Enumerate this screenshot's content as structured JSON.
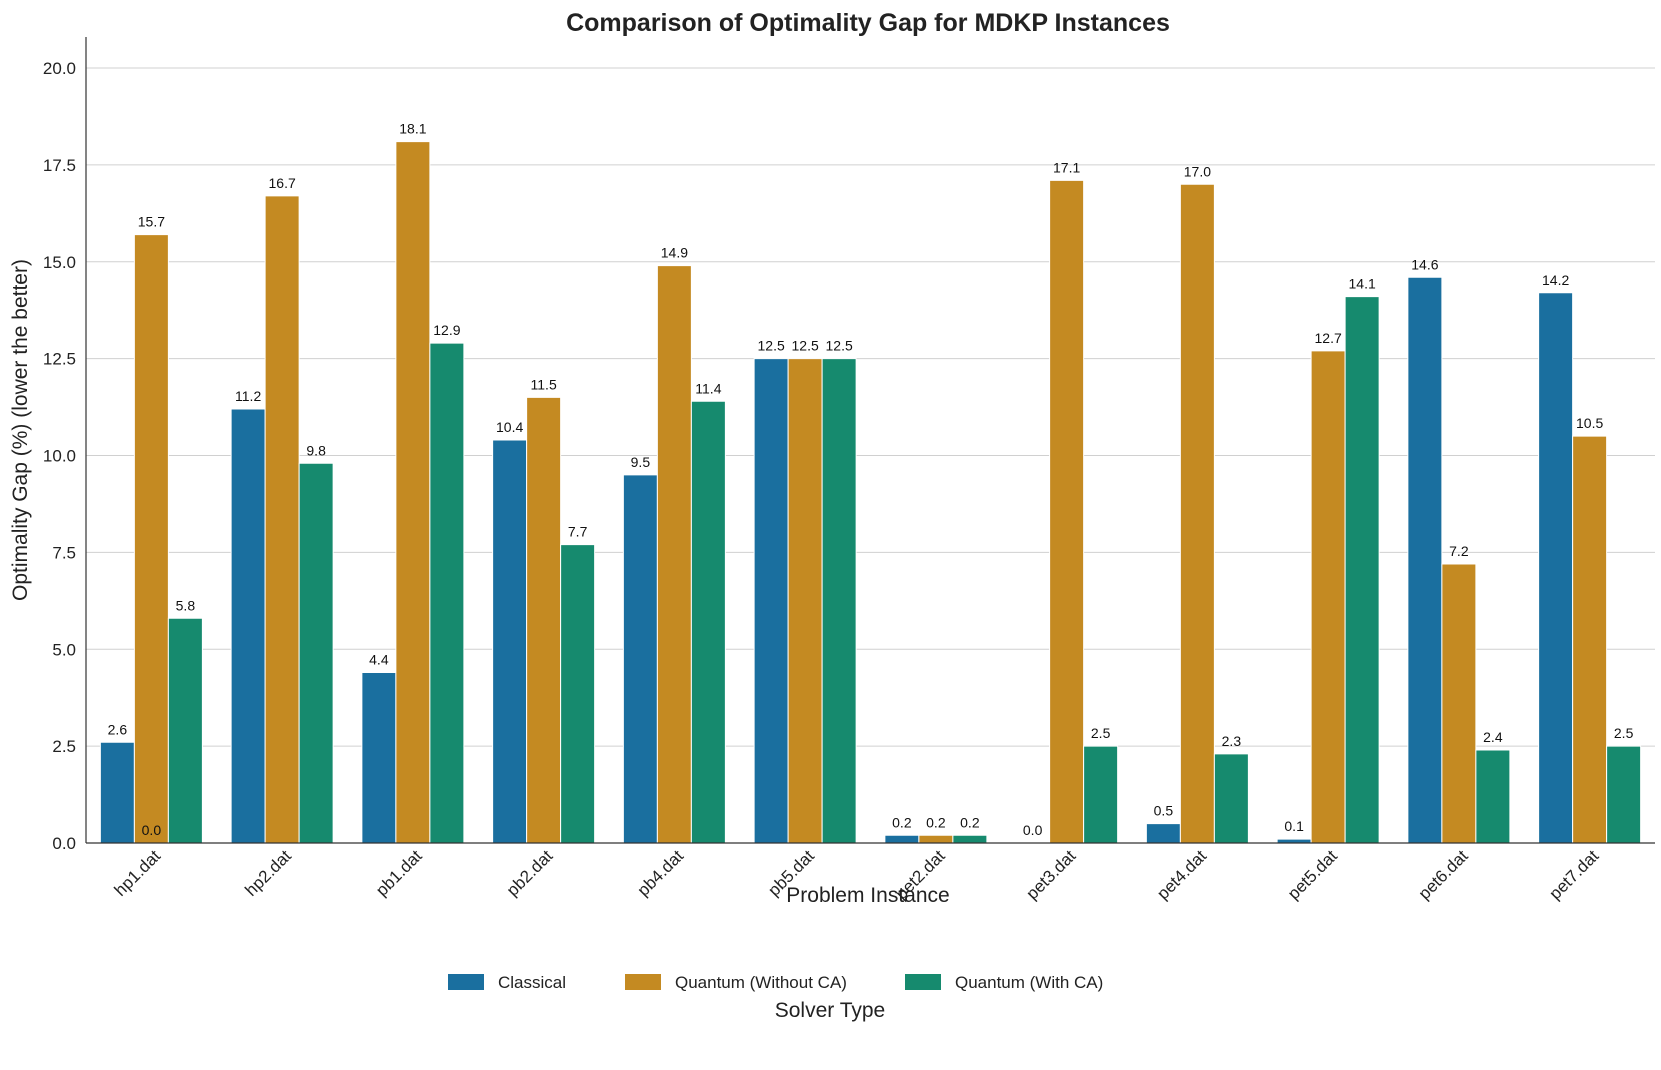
{
  "chart_data": {
    "type": "bar",
    "title": "Comparison of Optimality Gap for MDKP Instances",
    "xlabel": "Problem Instance",
    "ylabel": "Optimality Gap (%) (lower the better)",
    "ylim": [
      0,
      20.8
    ],
    "yticks": [
      0.0,
      2.5,
      5.0,
      7.5,
      10.0,
      12.5,
      15.0,
      17.5,
      20.0
    ],
    "ytick_labels": [
      "0.0",
      "2.5",
      "5.0",
      "7.5",
      "10.0",
      "12.5",
      "15.0",
      "17.5",
      "20.0"
    ],
    "grid": "horizontal",
    "categories": [
      "hp1.dat",
      "hp2.dat",
      "pb1.dat",
      "pb2.dat",
      "pb4.dat",
      "pb5.dat",
      "pet2.dat",
      "pet3.dat",
      "pet4.dat",
      "pet5.dat",
      "pet6.dat",
      "pet7.dat"
    ],
    "series": [
      {
        "name": "Classical",
        "color": "#1a6f9f",
        "values": [
          2.6,
          11.2,
          4.4,
          10.4,
          9.5,
          12.5,
          0.2,
          0.0,
          0.5,
          0.1,
          14.6,
          14.2
        ],
        "labels": [
          "2.6",
          "11.2",
          "4.4",
          "10.4",
          "9.5",
          "12.5",
          "0.2",
          "0.0",
          "0.5",
          "0.1",
          "14.6",
          "14.2"
        ]
      },
      {
        "name": "Quantum (Without CA)",
        "color": "#c48a22",
        "values": [
          15.7,
          16.7,
          18.1,
          11.5,
          14.9,
          12.5,
          0.2,
          17.1,
          17.0,
          12.7,
          7.2,
          10.5
        ],
        "labels": [
          "15.7",
          "16.7",
          "18.1",
          "11.5",
          "14.9",
          "12.5",
          "0.2",
          "17.1",
          "17.0",
          "12.7",
          "7.2",
          "10.5"
        ]
      },
      {
        "name": "Quantum (With CA)",
        "color": "#168a6e",
        "values": [
          5.8,
          9.8,
          12.9,
          7.7,
          11.4,
          12.5,
          0.2,
          2.5,
          2.3,
          14.1,
          2.4,
          2.5
        ],
        "labels": [
          "5.8",
          "9.8",
          "12.9",
          "7.7",
          "11.4",
          "12.5",
          "0.2",
          "2.5",
          "2.3",
          "14.1",
          "2.4",
          "2.5"
        ]
      }
    ],
    "extra_annotations": [
      {
        "category": "hp1.dat",
        "text": "0.0"
      }
    ],
    "legend": {
      "title": "Solver Type",
      "position": "bottom-center"
    }
  }
}
